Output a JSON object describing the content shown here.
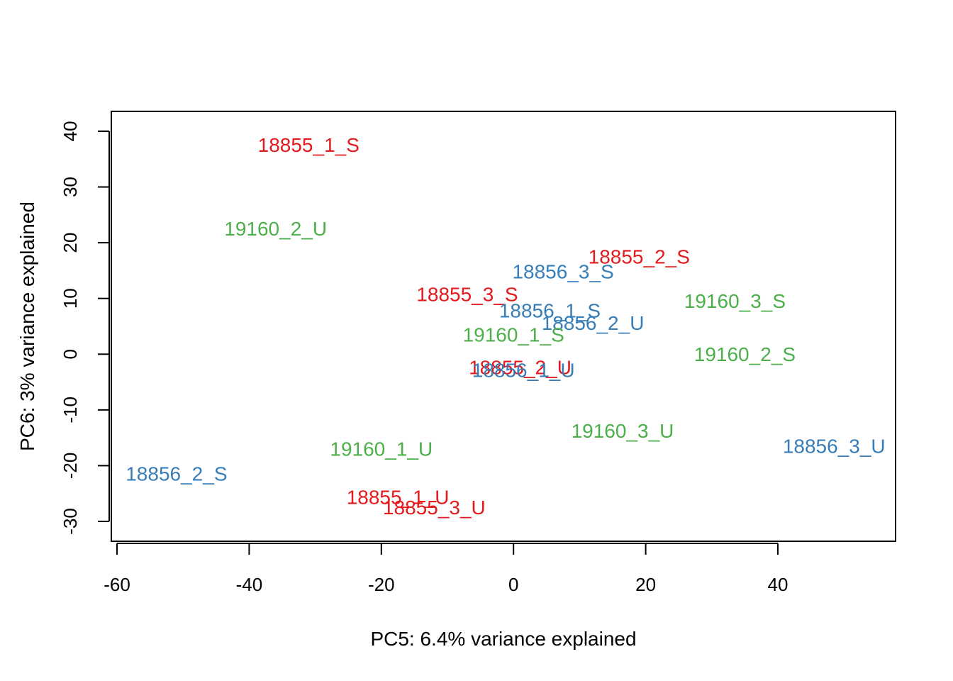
{
  "chart_data": {
    "type": "scatter",
    "title": "",
    "xlabel": "PC5: 6.4% variance explained",
    "ylabel": "PC6: 3% variance explained",
    "xlim": [
      -60,
      58
    ],
    "ylim": [
      -33,
      40
    ],
    "xticks": [
      -60,
      -40,
      -20,
      0,
      20,
      40
    ],
    "yticks": [
      -30,
      -20,
      -10,
      0,
      10,
      20,
      30,
      40
    ],
    "xtick_labels": [
      "-60",
      "-40",
      "-20",
      "0",
      "20",
      "40"
    ],
    "ytick_labels": [
      "-30",
      "-20",
      "-10",
      "0",
      "10",
      "20",
      "30",
      "40"
    ],
    "grid": false,
    "legend": "none",
    "colors": {
      "18855": "#e41a1c",
      "18856": "#377eb8",
      "19160": "#4daf4a"
    },
    "points": [
      {
        "label": "18855_1_S",
        "group": "18855",
        "x": -31,
        "y": 37.5
      },
      {
        "label": "18855_2_S",
        "group": "18855",
        "x": 19,
        "y": 17.5
      },
      {
        "label": "18855_3_S",
        "group": "18855",
        "x": -7,
        "y": 10.7
      },
      {
        "label": "18855_2_U",
        "group": "18855",
        "x": 1,
        "y": -2.4
      },
      {
        "label": "18855_1_U",
        "group": "18855",
        "x": -17.5,
        "y": -25.7
      },
      {
        "label": "18855_3_U",
        "group": "18855",
        "x": -12,
        "y": -27.5
      },
      {
        "label": "18856_3_S",
        "group": "18856",
        "x": 7.5,
        "y": 14.8
      },
      {
        "label": "18856_1_S",
        "group": "18856",
        "x": 5.5,
        "y": 7.8
      },
      {
        "label": "18856_2_U",
        "group": "18856",
        "x": 12,
        "y": 5.6
      },
      {
        "label": "18856_1_U",
        "group": "18856",
        "x": 1.5,
        "y": -2.9
      },
      {
        "label": "18856_2_S",
        "group": "18856",
        "x": -51,
        "y": -21.5
      },
      {
        "label": "18856_3_U",
        "group": "18856",
        "x": 48.5,
        "y": -16.5
      },
      {
        "label": "19160_2_U",
        "group": "19160",
        "x": -36,
        "y": 22.5
      },
      {
        "label": "19160_3_S",
        "group": "19160",
        "x": 33.5,
        "y": 9.5
      },
      {
        "label": "19160_1_S",
        "group": "19160",
        "x": 0,
        "y": 3.5
      },
      {
        "label": "19160_2_S",
        "group": "19160",
        "x": 35,
        "y": 0
      },
      {
        "label": "19160_3_U",
        "group": "19160",
        "x": 16.5,
        "y": -13.8
      },
      {
        "label": "19160_1_U",
        "group": "19160",
        "x": -20,
        "y": -17
      }
    ]
  }
}
